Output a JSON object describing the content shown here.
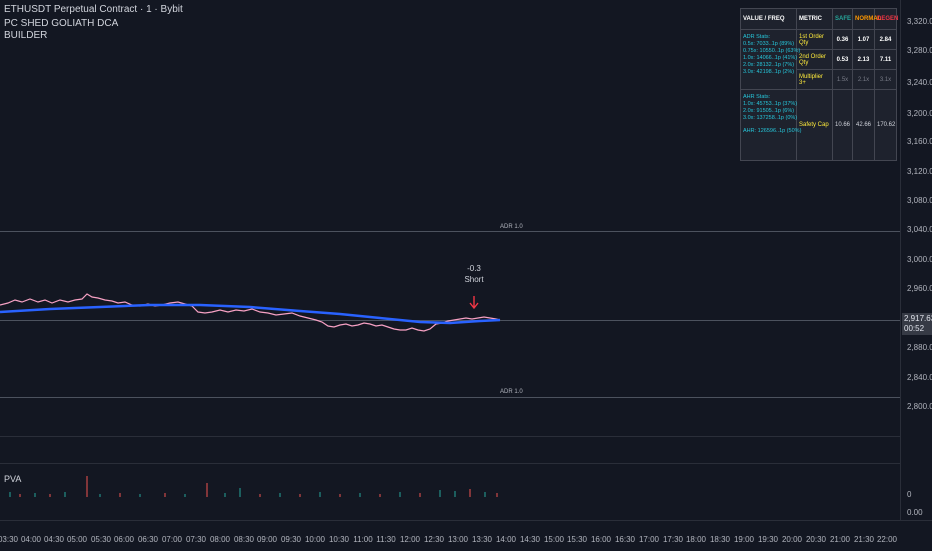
{
  "header": {
    "symbol_title": "ETHUSDT Perpetual Contract · 1 · Bybit",
    "indicator_line1": "PC SHED GOLIATH DCA",
    "indicator_line2": "BUILDER"
  },
  "price_axis": {
    "ticks": [
      "3,320.00",
      "3,280.00",
      "3,240.00",
      "3,200.00",
      "3,160.00",
      "3,120.00",
      "3,080.00",
      "3,040.00",
      "3,000.00",
      "2,960.00",
      "2,880.00",
      "2,840.00",
      "2,800.00"
    ],
    "last_price": "2,917.63",
    "countdown": "00:52",
    "volume_zero": "0",
    "bottom_value": "0.00"
  },
  "time_axis": {
    "ticks": [
      "03:30",
      "04:00",
      "04:30",
      "05:00",
      "05:30",
      "06:00",
      "06:30",
      "07:00",
      "07:30",
      "08:00",
      "08:30",
      "09:00",
      "09:30",
      "10:00",
      "10:30",
      "11:00",
      "11:30",
      "12:00",
      "12:30",
      "13:00",
      "13:30",
      "14:00",
      "14:30",
      "15:00",
      "15:30",
      "16:00",
      "16:30",
      "17:00",
      "17:30",
      "18:00",
      "18:30",
      "19:00",
      "19:30",
      "20:00",
      "20:30",
      "21:00",
      "21:30",
      "22:00"
    ]
  },
  "chart": {
    "adr_upper_label": "ADR 1.0",
    "adr_lower_label": "ADR 1.0",
    "signal_value": "-0.3",
    "signal_label": "Short",
    "volume_pane_label": "PVA",
    "colors": {
      "price": "#f7a1c4",
      "ma": "#2962ff",
      "signal_arrow": "#f23645",
      "vol_up": "#26a69a",
      "vol_down": "#ef5350"
    }
  },
  "stats_table": {
    "headers": {
      "value_freq": "VALUE / FREQ",
      "metric": "METRIC",
      "safe": "SAFE",
      "normal": "NORMAL",
      "degen": "DEGEN"
    },
    "adr_stats": [
      "ADR Stats:",
      "0.5x: 7033..1p (89%)",
      "0.75x: 10550..1p (63%)",
      "1.0x: 14066..1p (41%)",
      "2.0x: 28132..1p (7%)",
      "3.0x: 42198..1p (2%)"
    ],
    "ahr_stats": [
      "AHR Stats:",
      "1.0x: 45753..1p (37%)",
      "2.0x: 91505..1p (6%)",
      "3.0x: 137258..1p (0%)"
    ],
    "ahr_line": "AHR: 126596..1p (50%)",
    "rows": [
      {
        "metric": "1st Order Qty",
        "safe": "0.36",
        "normal": "1.07",
        "degen": "2.84"
      },
      {
        "metric": "2nd Order Qty",
        "safe": "0.53",
        "normal": "2.13",
        "degen": "7.11"
      },
      {
        "metric": "Multiplier 3+",
        "safe": "1.5x",
        "normal": "2.1x",
        "degen": "3.1x"
      },
      {
        "metric": "Safety Cap",
        "safe": "10.66",
        "normal": "42.66",
        "degen": "170.62"
      }
    ]
  }
}
